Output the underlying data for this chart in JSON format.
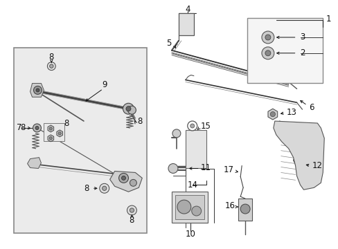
{
  "bg_color": "#ffffff",
  "fig_width": 4.89,
  "fig_height": 3.6,
  "dpi": 100,
  "line_color": "#2a2a2a",
  "label_fontsize": 8.5,
  "box_fill": "#ebebeb",
  "part_color": "#555555",
  "part_lw": 0.9
}
